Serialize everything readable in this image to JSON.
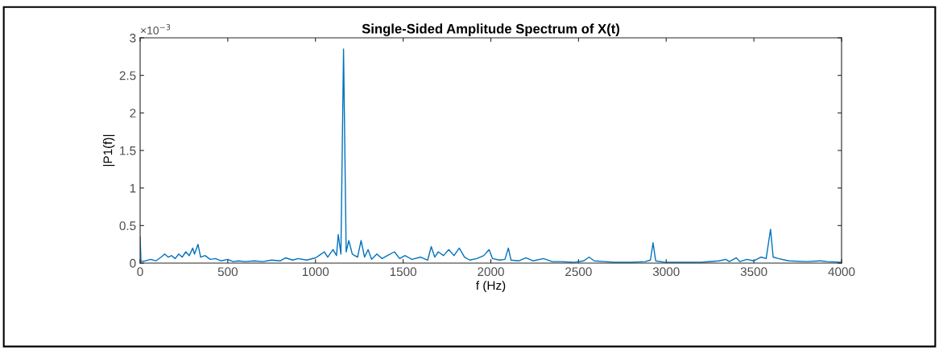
{
  "chart_data": {
    "type": "line",
    "title": "Single-Sided Amplitude Spectrum of X(t)",
    "xlabel": "f (Hz)",
    "ylabel": "|P1(f)|",
    "annotations": [
      "×10$^{−3}$"
    ],
    "xlim": [
      0,
      4000
    ],
    "xticks": [
      0,
      500,
      1000,
      1500,
      2000,
      2500,
      3000,
      3500,
      4000
    ],
    "ylim": [
      0,
      3
    ],
    "yticks": [
      0,
      0.5,
      1,
      1.5,
      2,
      2.5,
      3
    ],
    "grid": false,
    "marker": "none",
    "line_style": "solid",
    "series": [
      {
        "color": "#0072bd",
        "x": [
          0,
          5,
          30,
          60,
          90,
          120,
          140,
          160,
          180,
          200,
          220,
          240,
          260,
          280,
          300,
          310,
          330,
          345,
          370,
          400,
          430,
          460,
          500,
          530,
          560,
          600,
          650,
          700,
          750,
          800,
          830,
          870,
          900,
          950,
          1000,
          1020,
          1050,
          1070,
          1100,
          1120,
          1130,
          1145,
          1160,
          1175,
          1190,
          1210,
          1240,
          1260,
          1280,
          1300,
          1320,
          1350,
          1380,
          1410,
          1450,
          1480,
          1510,
          1550,
          1600,
          1640,
          1660,
          1680,
          1700,
          1730,
          1760,
          1790,
          1820,
          1850,
          1880,
          1920,
          1960,
          1990,
          2010,
          2050,
          2080,
          2100,
          2115,
          2160,
          2200,
          2240,
          2300,
          2350,
          2400,
          2470,
          2530,
          2560,
          2590,
          2650,
          2700,
          2800,
          2880,
          2910,
          2925,
          2940,
          3000,
          3100,
          3200,
          3300,
          3340,
          3360,
          3400,
          3420,
          3460,
          3500,
          3540,
          3570,
          3595,
          3610,
          3640,
          3700,
          3800,
          3880,
          3920,
          4000
        ],
        "values": [
          0.35,
          0.02,
          0.03,
          0.05,
          0.03,
          0.08,
          0.12,
          0.08,
          0.1,
          0.06,
          0.12,
          0.08,
          0.15,
          0.1,
          0.2,
          0.12,
          0.25,
          0.08,
          0.1,
          0.05,
          0.06,
          0.03,
          0.05,
          0.02,
          0.03,
          0.02,
          0.03,
          0.02,
          0.04,
          0.03,
          0.07,
          0.04,
          0.06,
          0.04,
          0.07,
          0.1,
          0.15,
          0.08,
          0.18,
          0.1,
          0.38,
          0.12,
          2.85,
          0.15,
          0.3,
          0.12,
          0.08,
          0.3,
          0.08,
          0.18,
          0.05,
          0.12,
          0.06,
          0.1,
          0.15,
          0.06,
          0.1,
          0.05,
          0.08,
          0.04,
          0.22,
          0.08,
          0.15,
          0.1,
          0.18,
          0.1,
          0.2,
          0.08,
          0.04,
          0.06,
          0.1,
          0.18,
          0.06,
          0.04,
          0.05,
          0.2,
          0.04,
          0.03,
          0.07,
          0.03,
          0.06,
          0.02,
          0.02,
          0.01,
          0.03,
          0.08,
          0.03,
          0.02,
          0.01,
          0.01,
          0.02,
          0.04,
          0.27,
          0.03,
          0.01,
          0.01,
          0.01,
          0.03,
          0.05,
          0.02,
          0.07,
          0.02,
          0.05,
          0.03,
          0.08,
          0.06,
          0.45,
          0.08,
          0.06,
          0.03,
          0.02,
          0.03,
          0.02,
          0.01
        ]
      }
    ]
  }
}
